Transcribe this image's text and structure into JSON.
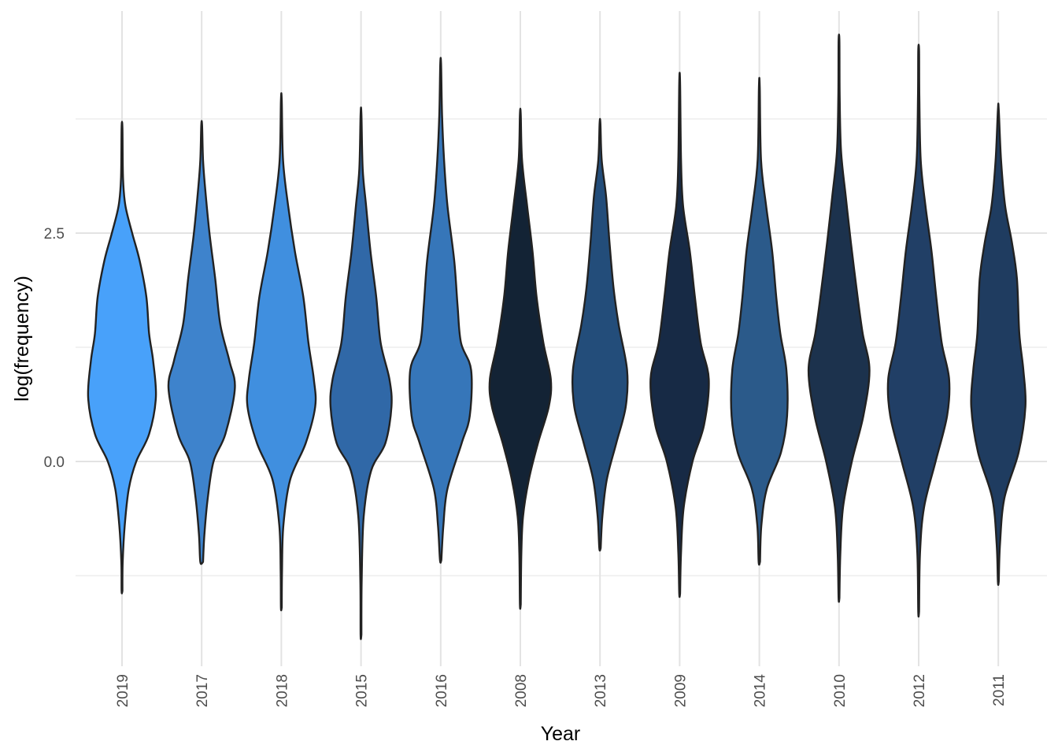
{
  "chart_data": {
    "type": "violin",
    "xlabel": "Year",
    "ylabel": "log(frequency)",
    "y_ticks": [
      {
        "value": 0.0,
        "label": "0.0"
      },
      {
        "value": 2.5,
        "label": "2.5"
      }
    ],
    "y_minor_gridlines": [
      -1.25,
      1.25,
      3.75
    ],
    "ylim": [
      -2.2,
      4.9
    ],
    "grid": true,
    "legend": "none",
    "categories": [
      "2019",
      "2017",
      "2018",
      "2015",
      "2016",
      "2008",
      "2013",
      "2009",
      "2014",
      "2010",
      "2012",
      "2011"
    ],
    "series": [
      {
        "category": "2019",
        "fill": "#48A1FA",
        "min": -1.42,
        "max": 3.65,
        "density": [
          [
            -1.42,
            0.01
          ],
          [
            -1.1,
            0.02
          ],
          [
            -0.7,
            0.08
          ],
          [
            -0.3,
            0.2
          ],
          [
            0.0,
            0.42
          ],
          [
            0.3,
            0.8
          ],
          [
            0.7,
            1.0
          ],
          [
            1.1,
            0.92
          ],
          [
            1.4,
            0.8
          ],
          [
            1.8,
            0.72
          ],
          [
            2.2,
            0.52
          ],
          [
            2.5,
            0.3
          ],
          [
            2.8,
            0.1
          ],
          [
            3.1,
            0.03
          ],
          [
            3.65,
            0.01
          ]
        ]
      },
      {
        "category": "2017",
        "fill": "#3E83CC",
        "min": -1.1,
        "max": 3.68,
        "density": [
          [
            -1.1,
            0.04
          ],
          [
            -0.8,
            0.08
          ],
          [
            -0.4,
            0.18
          ],
          [
            0.0,
            0.35
          ],
          [
            0.3,
            0.7
          ],
          [
            0.8,
            0.98
          ],
          [
            1.1,
            0.82
          ],
          [
            1.5,
            0.55
          ],
          [
            2.0,
            0.4
          ],
          [
            2.5,
            0.23
          ],
          [
            3.0,
            0.1
          ],
          [
            3.3,
            0.04
          ],
          [
            3.68,
            0.01
          ]
        ]
      },
      {
        "category": "2018",
        "fill": "#408FDF",
        "min": -1.6,
        "max": 3.95,
        "density": [
          [
            -1.6,
            0.01
          ],
          [
            -1.2,
            0.02
          ],
          [
            -0.7,
            0.06
          ],
          [
            -0.2,
            0.26
          ],
          [
            0.2,
            0.72
          ],
          [
            0.6,
            1.0
          ],
          [
            0.9,
            0.96
          ],
          [
            1.3,
            0.8
          ],
          [
            1.8,
            0.65
          ],
          [
            2.3,
            0.4
          ],
          [
            2.8,
            0.2
          ],
          [
            3.3,
            0.05
          ],
          [
            3.95,
            0.01
          ]
        ]
      },
      {
        "category": "2015",
        "fill": "#3068A7",
        "min": -1.9,
        "max": 3.8,
        "density": [
          [
            -1.9,
            0.01
          ],
          [
            -1.3,
            0.02
          ],
          [
            -0.6,
            0.08
          ],
          [
            -0.1,
            0.3
          ],
          [
            0.2,
            0.72
          ],
          [
            0.6,
            0.9
          ],
          [
            0.9,
            0.84
          ],
          [
            1.3,
            0.58
          ],
          [
            1.8,
            0.45
          ],
          [
            2.3,
            0.28
          ],
          [
            2.8,
            0.15
          ],
          [
            3.2,
            0.05
          ],
          [
            3.8,
            0.01
          ]
        ]
      },
      {
        "category": "2016",
        "fill": "#3676B9",
        "min": -1.08,
        "max": 4.35,
        "density": [
          [
            -1.08,
            0.02
          ],
          [
            -0.7,
            0.08
          ],
          [
            -0.3,
            0.2
          ],
          [
            0.2,
            0.62
          ],
          [
            0.5,
            0.86
          ],
          [
            1.0,
            0.9
          ],
          [
            1.3,
            0.6
          ],
          [
            1.7,
            0.5
          ],
          [
            2.2,
            0.4
          ],
          [
            2.8,
            0.2
          ],
          [
            3.3,
            0.1
          ],
          [
            3.8,
            0.04
          ],
          [
            4.35,
            0.01
          ]
        ]
      },
      {
        "category": "2008",
        "fill": "#132335",
        "min": -1.57,
        "max": 3.8,
        "density": [
          [
            -1.57,
            0.01
          ],
          [
            -1.0,
            0.03
          ],
          [
            -0.6,
            0.08
          ],
          [
            -0.2,
            0.25
          ],
          [
            0.2,
            0.52
          ],
          [
            0.6,
            0.84
          ],
          [
            0.9,
            0.9
          ],
          [
            1.3,
            0.68
          ],
          [
            1.8,
            0.48
          ],
          [
            2.3,
            0.36
          ],
          [
            2.8,
            0.2
          ],
          [
            3.3,
            0.05
          ],
          [
            3.8,
            0.01
          ]
        ]
      },
      {
        "category": "2013",
        "fill": "#234D7A",
        "min": -0.95,
        "max": 3.7,
        "density": [
          [
            -0.95,
            0.02
          ],
          [
            -0.6,
            0.07
          ],
          [
            -0.2,
            0.2
          ],
          [
            0.2,
            0.48
          ],
          [
            0.6,
            0.76
          ],
          [
            1.0,
            0.8
          ],
          [
            1.5,
            0.55
          ],
          [
            1.9,
            0.4
          ],
          [
            2.4,
            0.28
          ],
          [
            2.9,
            0.18
          ],
          [
            3.3,
            0.05
          ],
          [
            3.7,
            0.01
          ]
        ]
      },
      {
        "category": "2009",
        "fill": "#172A45",
        "min": -1.45,
        "max": 4.15,
        "density": [
          [
            -1.45,
            0.01
          ],
          [
            -1.0,
            0.04
          ],
          [
            -0.5,
            0.12
          ],
          [
            0.0,
            0.38
          ],
          [
            0.4,
            0.72
          ],
          [
            0.9,
            0.86
          ],
          [
            1.3,
            0.62
          ],
          [
            1.8,
            0.45
          ],
          [
            2.3,
            0.3
          ],
          [
            2.8,
            0.1
          ],
          [
            3.3,
            0.04
          ],
          [
            4.15,
            0.01
          ]
        ]
      },
      {
        "category": "2014",
        "fill": "#2B5A8A",
        "min": -1.1,
        "max": 4.1,
        "density": [
          [
            -1.1,
            0.02
          ],
          [
            -0.7,
            0.06
          ],
          [
            -0.3,
            0.22
          ],
          [
            0.1,
            0.64
          ],
          [
            0.5,
            0.82
          ],
          [
            1.0,
            0.8
          ],
          [
            1.4,
            0.62
          ],
          [
            1.8,
            0.5
          ],
          [
            2.3,
            0.38
          ],
          [
            2.8,
            0.2
          ],
          [
            3.3,
            0.05
          ],
          [
            4.1,
            0.01
          ]
        ]
      },
      {
        "category": "2010",
        "fill": "#1C324D",
        "min": -1.5,
        "max": 4.6,
        "density": [
          [
            -1.5,
            0.01
          ],
          [
            -1.0,
            0.04
          ],
          [
            -0.5,
            0.12
          ],
          [
            0.0,
            0.38
          ],
          [
            0.5,
            0.72
          ],
          [
            1.0,
            0.9
          ],
          [
            1.4,
            0.7
          ],
          [
            1.8,
            0.55
          ],
          [
            2.4,
            0.35
          ],
          [
            2.9,
            0.2
          ],
          [
            3.4,
            0.06
          ],
          [
            4.0,
            0.02
          ],
          [
            4.6,
            0.01
          ]
        ]
      },
      {
        "category": "2012",
        "fill": "#213F66",
        "min": -1.65,
        "max": 4.5,
        "density": [
          [
            -1.65,
            0.01
          ],
          [
            -1.0,
            0.04
          ],
          [
            -0.5,
            0.16
          ],
          [
            0.0,
            0.5
          ],
          [
            0.5,
            0.84
          ],
          [
            0.9,
            0.9
          ],
          [
            1.3,
            0.68
          ],
          [
            1.8,
            0.52
          ],
          [
            2.3,
            0.38
          ],
          [
            2.8,
            0.2
          ],
          [
            3.3,
            0.06
          ],
          [
            4.0,
            0.02
          ],
          [
            4.5,
            0.01
          ]
        ]
      },
      {
        "category": "2011",
        "fill": "#1F3C60",
        "min": -1.32,
        "max": 3.85,
        "density": [
          [
            -1.32,
            0.01
          ],
          [
            -0.9,
            0.05
          ],
          [
            -0.4,
            0.18
          ],
          [
            0.1,
            0.6
          ],
          [
            0.6,
            0.8
          ],
          [
            1.0,
            0.74
          ],
          [
            1.4,
            0.62
          ],
          [
            2.0,
            0.55
          ],
          [
            2.4,
            0.4
          ],
          [
            2.8,
            0.2
          ],
          [
            3.3,
            0.08
          ],
          [
            3.85,
            0.01
          ]
        ]
      }
    ]
  }
}
